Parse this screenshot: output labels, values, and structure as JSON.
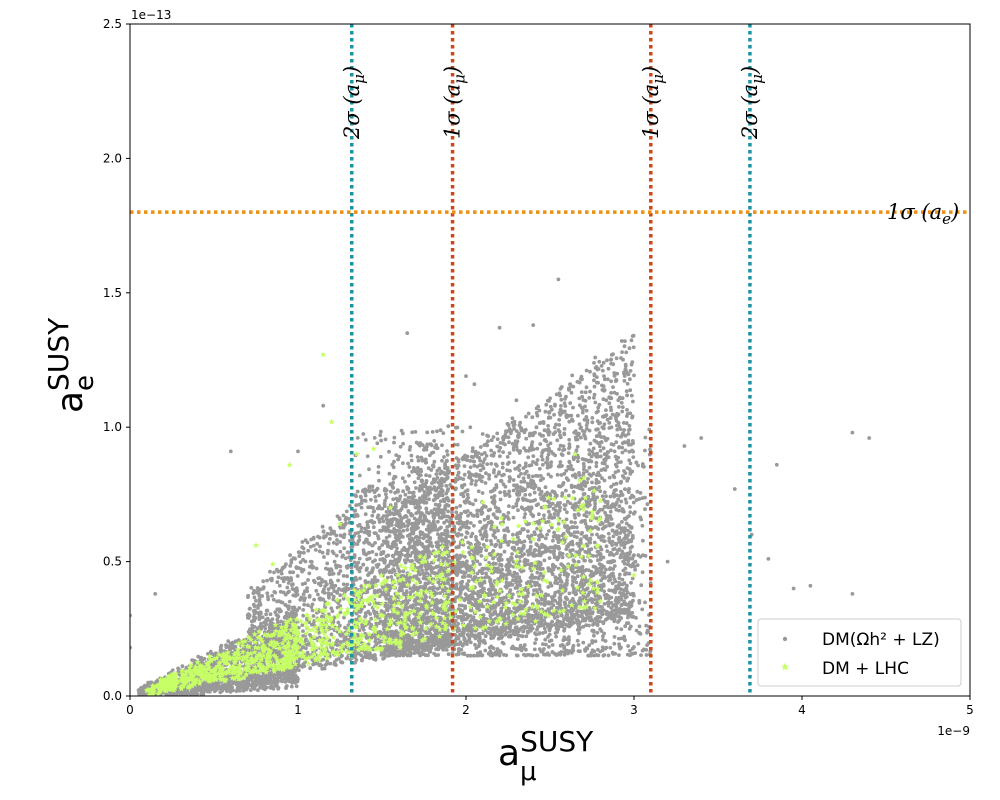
{
  "chart_data": {
    "type": "scatter",
    "x_axis": {
      "label_base": "a",
      "label_sub": "μ",
      "label_sup": "SUSY",
      "range": [
        0,
        5
      ],
      "ticks": [
        0,
        1,
        2,
        3,
        4,
        5
      ],
      "tick_labels": [
        "0",
        "1",
        "2",
        "3",
        "4",
        "5"
      ],
      "multiplier": "1e−9"
    },
    "y_axis": {
      "label_base": "a",
      "label_sub": "e",
      "label_sup": "SUSY",
      "range": [
        0,
        2.5
      ],
      "ticks": [
        0,
        0.5,
        1.0,
        1.5,
        2.0,
        2.5
      ],
      "tick_labels": [
        "0.0",
        "0.5",
        "1.0",
        "1.5",
        "2.0",
        "2.5"
      ],
      "multiplier": "1e−13"
    },
    "grid": false,
    "legend_position": "bottom-right",
    "series": [
      {
        "name": "DM(Ωh² + LZ)",
        "marker": "dot",
        "color": "#999999",
        "highlight_points": [
          [
            2.55,
            1.55
          ],
          [
            1.65,
            1.35
          ],
          [
            2.2,
            1.37
          ],
          [
            2.4,
            1.38
          ],
          [
            2.0,
            1.19
          ],
          [
            2.05,
            1.16
          ],
          [
            2.3,
            1.1
          ],
          [
            4.3,
            0.98
          ],
          [
            4.4,
            0.96
          ],
          [
            3.4,
            0.96
          ],
          [
            3.3,
            0.93
          ],
          [
            3.85,
            0.86
          ],
          [
            1.0,
            0.91
          ],
          [
            0.6,
            0.91
          ],
          [
            4.05,
            0.41
          ],
          [
            3.95,
            0.4
          ],
          [
            4.3,
            0.38
          ],
          [
            3.8,
            0.51
          ],
          [
            3.6,
            0.77
          ],
          [
            3.7,
            0.6
          ],
          [
            0.15,
            0.38
          ],
          [
            0.0,
            0.3
          ],
          [
            0.0,
            0.18
          ],
          [
            1.15,
            1.08
          ],
          [
            3.2,
            0.5
          ]
        ],
        "cloud": [
          {
            "x": [
              0.05,
              1.0
            ],
            "y_slope": [
              0.045,
              0.33
            ],
            "count": 1600
          },
          {
            "x": [
              0.7,
              1.9
            ],
            "y_slope": [
              0.1,
              0.55
            ],
            "count": 1700
          },
          {
            "x": [
              1.5,
              3.0
            ],
            "y_slope": [
              0.1,
              0.45
            ],
            "count": 3400
          },
          {
            "x": [
              1.3,
              3.1
            ],
            "y_band": [
              0.15,
              1.0
            ],
            "count": 1200
          }
        ]
      },
      {
        "name": "DM + LHC",
        "marker": "star",
        "color": "#c6ff66",
        "highlight_points": [
          [
            1.15,
            1.27
          ],
          [
            1.2,
            1.02
          ],
          [
            1.35,
            0.9
          ],
          [
            1.45,
            0.92
          ],
          [
            0.95,
            0.86
          ],
          [
            0.75,
            0.56
          ],
          [
            0.85,
            0.49
          ],
          [
            1.55,
            0.7
          ],
          [
            2.55,
            0.62
          ],
          [
            2.8,
            0.66
          ],
          [
            2.1,
            0.72
          ],
          [
            2.65,
            0.9
          ],
          [
            3.0,
            0.45
          ],
          [
            1.25,
            0.64
          ]
        ],
        "cloud": [
          {
            "x": [
              0.1,
              1.0
            ],
            "y_slope": [
              0.12,
              0.3
            ],
            "count": 500
          },
          {
            "x": [
              0.9,
              1.9
            ],
            "y_slope": [
              0.12,
              0.3
            ],
            "count": 340
          },
          {
            "x": [
              1.8,
              2.8
            ],
            "y_slope": [
              0.12,
              0.3
            ],
            "count": 160
          }
        ]
      }
    ],
    "reference_lines": [
      {
        "orientation": "vertical",
        "x": 1.32,
        "label_prefix": "2σ",
        "label_arg": "a",
        "label_sub": "μ",
        "color": "#1b95a2"
      },
      {
        "orientation": "vertical",
        "x": 1.92,
        "label_prefix": "1σ",
        "label_arg": "a",
        "label_sub": "μ",
        "color": "#cc4818"
      },
      {
        "orientation": "vertical",
        "x": 3.1,
        "label_prefix": "1σ",
        "label_arg": "a",
        "label_sub": "μ",
        "color": "#cc4818"
      },
      {
        "orientation": "vertical",
        "x": 3.69,
        "label_prefix": "2σ",
        "label_arg": "a",
        "label_sub": "μ",
        "color": "#1b95a2"
      },
      {
        "orientation": "horizontal",
        "y": 1.8,
        "label_prefix": "1σ",
        "label_arg": "a",
        "label_sub": "e",
        "color": "#ef8f12"
      }
    ]
  }
}
